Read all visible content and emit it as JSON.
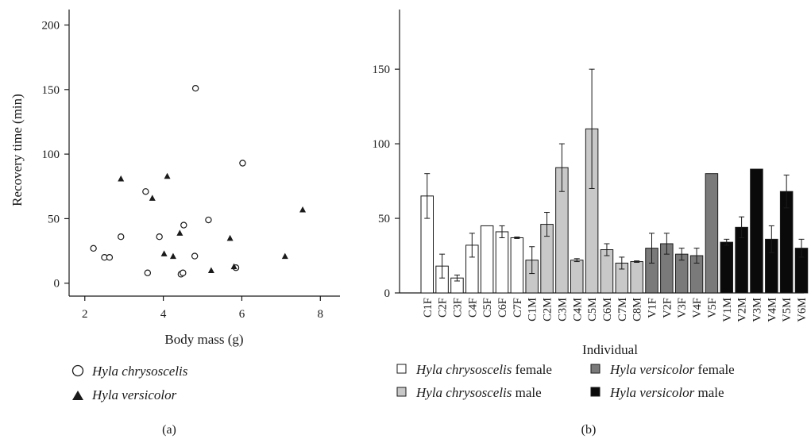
{
  "chart_data": [
    {
      "type": "scatter",
      "caption": "(a)",
      "xlabel": "Body mass (g)",
      "ylabel": "Recovery time (min)",
      "xlim": [
        1.6,
        8.5
      ],
      "ylim": [
        -10,
        212
      ],
      "xticks": [
        "2",
        "4",
        "6",
        "8"
      ],
      "yticks": [
        "0",
        "50",
        "100",
        "150",
        "200"
      ],
      "grid": false,
      "legend_position": "bottom-left",
      "series": [
        {
          "name": "Hyla chrysoscelis",
          "marker": "open-circle",
          "points": [
            [
              2.22,
              27
            ],
            [
              2.5,
              20
            ],
            [
              2.63,
              20
            ],
            [
              2.92,
              36
            ],
            [
              3.55,
              71
            ],
            [
              3.6,
              8
            ],
            [
              3.9,
              36
            ],
            [
              4.45,
              7
            ],
            [
              4.5,
              8
            ],
            [
              4.52,
              45
            ],
            [
              4.8,
              21
            ],
            [
              4.82,
              151
            ],
            [
              5.15,
              49
            ],
            [
              5.85,
              12
            ],
            [
              6.02,
              93
            ]
          ]
        },
        {
          "name": "Hyla versicolor",
          "marker": "filled-triangle",
          "points": [
            [
              2.92,
              81
            ],
            [
              3.72,
              66
            ],
            [
              4.02,
              23
            ],
            [
              4.1,
              83
            ],
            [
              4.25,
              21
            ],
            [
              4.42,
              39
            ],
            [
              5.22,
              10
            ],
            [
              5.7,
              35
            ],
            [
              5.8,
              13
            ],
            [
              7.1,
              21
            ],
            [
              7.55,
              57
            ]
          ]
        }
      ]
    },
    {
      "type": "bar",
      "caption": "(b)",
      "xlabel": "Individual",
      "ylabel": "",
      "ylim": [
        0,
        190
      ],
      "yticks": [
        "0",
        "50",
        "100",
        "150"
      ],
      "grid": false,
      "legend_position": "bottom",
      "categories": [
        "C1F",
        "C2F",
        "C3F",
        "C4F",
        "C5F",
        "C6F",
        "C7F",
        "C1M",
        "C2M",
        "C3M",
        "C4M",
        "C5M",
        "C6M",
        "C7M",
        "C8M",
        "V1F",
        "V2F",
        "V3F",
        "V4F",
        "V5F",
        "V1M",
        "V2M",
        "V3M",
        "V4M",
        "V5M",
        "V6M"
      ],
      "values": [
        65,
        18,
        10,
        32,
        45,
        41,
        37,
        22,
        46,
        84,
        22,
        110,
        29,
        20,
        21,
        30,
        33,
        26,
        25,
        80,
        34,
        44,
        83,
        36,
        68,
        30
      ],
      "errors": [
        15,
        8,
        2,
        8,
        0,
        4,
        0.5,
        9,
        8,
        16,
        1,
        40,
        4,
        4,
        0.5,
        10,
        7,
        4,
        5,
        0,
        2,
        7,
        0,
        9,
        11,
        6
      ],
      "groups": [
        "chf",
        "chf",
        "chf",
        "chf",
        "chf",
        "chf",
        "chf",
        "chm",
        "chm",
        "chm",
        "chm",
        "chm",
        "chm",
        "chm",
        "chm",
        "vef",
        "vef",
        "vef",
        "vef",
        "vef",
        "vem",
        "vem",
        "vem",
        "vem",
        "vem",
        "vem"
      ],
      "group_colors": {
        "chf": "#ffffff",
        "chm": "#c8c8c8",
        "vef": "#7a7a7a",
        "vem": "#0a0a0a"
      },
      "legend": [
        {
          "group": "chf",
          "species": "Hyla chrysoscelis",
          "sex": "female"
        },
        {
          "group": "vef",
          "species": "Hyla versicolor",
          "sex": "female"
        },
        {
          "group": "chm",
          "species": "Hyla chrysoscelis",
          "sex": "male"
        },
        {
          "group": "vem",
          "species": "Hyla versicolor",
          "sex": "male"
        }
      ]
    }
  ]
}
